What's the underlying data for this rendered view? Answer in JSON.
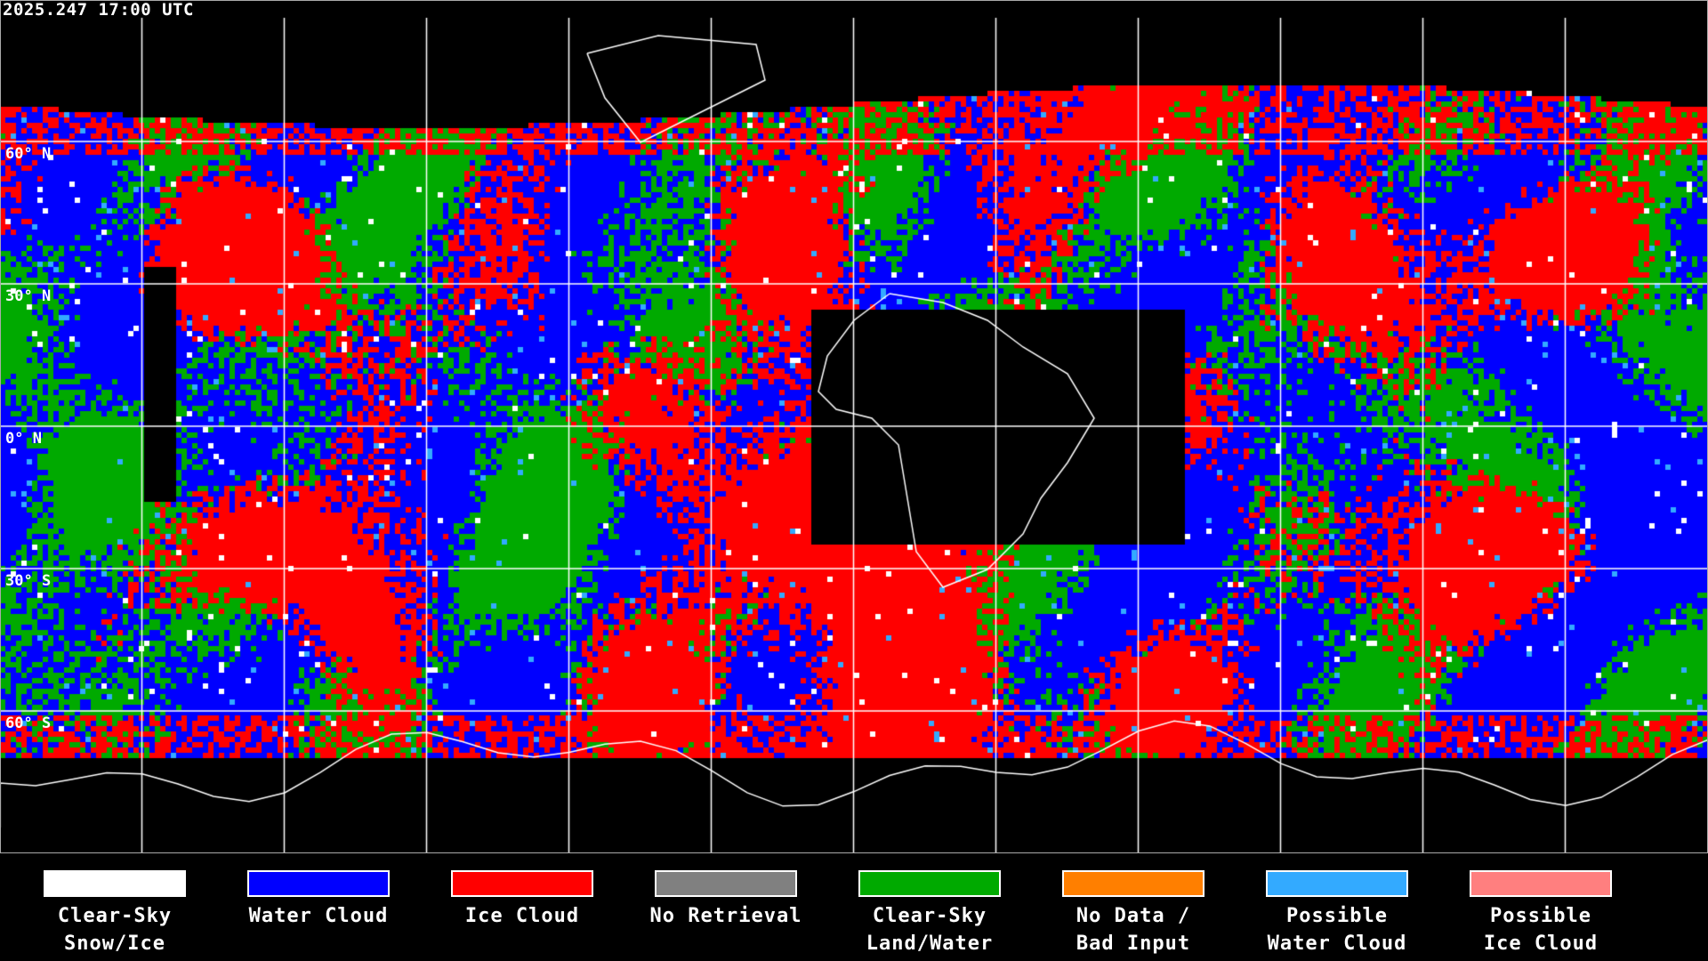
{
  "header": {
    "timestamp": "2025.247 17:00 UTC"
  },
  "map": {
    "lat_labels": [
      "60° N",
      "30° N",
      "0° N",
      "30° S",
      "60° S"
    ],
    "background_color": "#000000",
    "gridline_color": "#ffffff",
    "coastline_color": "#ffffff"
  },
  "legend": [
    {
      "label": "Clear-Sky\nSnow/Ice",
      "color": "#ffffff"
    },
    {
      "label": "Water Cloud",
      "color": "#0000ff"
    },
    {
      "label": "Ice Cloud",
      "color": "#ff0000"
    },
    {
      "label": "No Retrieval",
      "color": "#808080"
    },
    {
      "label": "Clear-Sky\nLand/Water",
      "color": "#00aa00"
    },
    {
      "label": "No Data /\nBad Input",
      "color": "#ff7f00"
    },
    {
      "label": "Possible\nWater Cloud",
      "color": "#33aaff"
    },
    {
      "label": "Possible\nIce Cloud",
      "color": "#ff7f7f"
    }
  ]
}
